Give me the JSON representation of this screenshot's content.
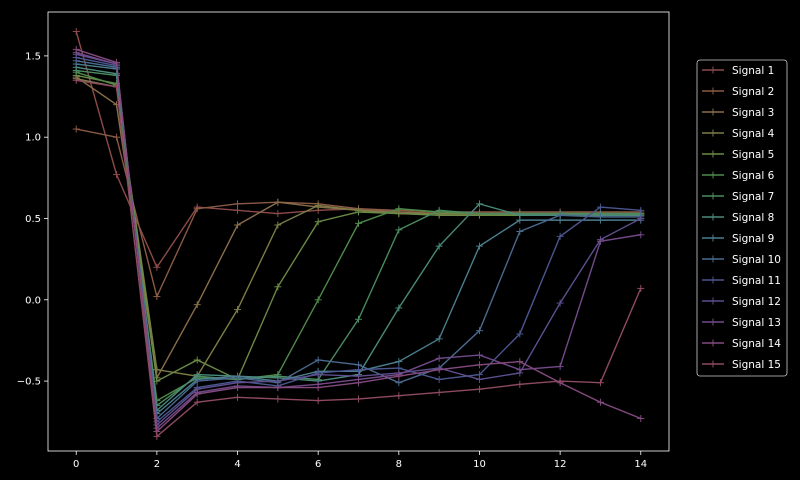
{
  "chart_data": {
    "type": "line",
    "title": "",
    "xlabel": "",
    "ylabel": "",
    "xlim": [
      -0.7,
      14.7
    ],
    "ylim": [
      -0.93,
      1.77
    ],
    "xticks": [
      0,
      2,
      4,
      6,
      8,
      10,
      12,
      14
    ],
    "xtick_labels": [
      "0",
      "2",
      "4",
      "6",
      "8",
      "10",
      "12",
      "14"
    ],
    "yticks": [
      -0.5,
      0.0,
      0.5,
      1.0,
      1.5
    ],
    "ytick_labels": [
      "−0.5",
      "0.0",
      "0.5",
      "1.0",
      "1.5"
    ],
    "grid": false,
    "legend_position": "right",
    "marker": "+",
    "x": [
      0,
      1,
      2,
      3,
      4,
      5,
      6,
      7,
      8,
      9,
      10,
      11,
      12,
      13,
      14
    ],
    "series": [
      {
        "name": "Signal 1",
        "color": "#8e4a4a",
        "values": [
          1.65,
          0.77,
          0.2,
          0.57,
          0.55,
          0.53,
          0.55,
          0.56,
          0.54,
          0.53,
          0.53,
          0.53,
          0.53,
          0.53,
          0.53
        ]
      },
      {
        "name": "Signal 2",
        "color": "#8a5a45",
        "values": [
          1.05,
          1.0,
          0.02,
          0.56,
          0.59,
          0.6,
          0.59,
          0.56,
          0.55,
          0.54,
          0.54,
          0.54,
          0.54,
          0.54,
          0.54
        ]
      },
      {
        "name": "Signal 3",
        "color": "#8a6e4a",
        "values": [
          1.37,
          1.2,
          -0.48,
          -0.03,
          0.46,
          0.6,
          0.57,
          0.55,
          0.54,
          0.53,
          0.53,
          0.53,
          0.53,
          0.53,
          0.53
        ]
      },
      {
        "name": "Signal 4",
        "color": "#7d7d46",
        "values": [
          1.36,
          1.31,
          -0.43,
          -0.47,
          -0.06,
          0.46,
          0.58,
          0.55,
          0.53,
          0.53,
          0.53,
          0.53,
          0.53,
          0.53,
          0.53
        ]
      },
      {
        "name": "Signal 5",
        "color": "#6a8a46",
        "values": [
          1.38,
          1.33,
          -0.5,
          -0.37,
          -0.49,
          0.08,
          0.48,
          0.54,
          0.53,
          0.52,
          0.52,
          0.52,
          0.52,
          0.52,
          0.52
        ]
      },
      {
        "name": "Signal 6",
        "color": "#4f8a4a",
        "values": [
          1.4,
          1.32,
          -0.62,
          -0.48,
          -0.49,
          -0.46,
          0.0,
          0.47,
          0.56,
          0.54,
          0.53,
          0.53,
          0.53,
          0.53,
          0.53
        ]
      },
      {
        "name": "Signal 7",
        "color": "#4a8a5e",
        "values": [
          1.41,
          1.38,
          -0.65,
          -0.47,
          -0.49,
          -0.47,
          -0.49,
          -0.12,
          0.43,
          0.55,
          0.53,
          0.53,
          0.53,
          0.53,
          0.53
        ]
      },
      {
        "name": "Signal 8",
        "color": "#4a8a7a",
        "values": [
          1.43,
          1.39,
          -0.68,
          -0.46,
          -0.47,
          -0.48,
          -0.5,
          -0.46,
          -0.05,
          0.33,
          0.59,
          0.52,
          0.52,
          0.52,
          0.52
        ]
      },
      {
        "name": "Signal 9",
        "color": "#4a7e8e",
        "values": [
          1.45,
          1.42,
          -0.7,
          -0.49,
          -0.47,
          -0.5,
          -0.44,
          -0.44,
          -0.38,
          -0.24,
          0.33,
          0.49,
          0.49,
          0.49,
          0.49
        ]
      },
      {
        "name": "Signal 10",
        "color": "#4a6a8e",
        "values": [
          1.47,
          1.43,
          -0.73,
          -0.5,
          -0.48,
          -0.51,
          -0.37,
          -0.4,
          -0.51,
          -0.42,
          -0.19,
          0.42,
          0.52,
          0.51,
          0.51
        ]
      },
      {
        "name": "Signal 11",
        "color": "#4a568e",
        "values": [
          1.49,
          1.44,
          -0.75,
          -0.54,
          -0.5,
          -0.53,
          -0.45,
          -0.43,
          -0.42,
          -0.49,
          -0.46,
          -0.21,
          0.39,
          0.57,
          0.55
        ]
      },
      {
        "name": "Signal 12",
        "color": "#5e4e8e",
        "values": [
          1.51,
          1.45,
          -0.77,
          -0.55,
          -0.51,
          -0.5,
          -0.46,
          -0.47,
          -0.45,
          -0.42,
          -0.49,
          -0.45,
          -0.02,
          0.37,
          0.5
        ]
      },
      {
        "name": "Signal 13",
        "color": "#724a8a",
        "values": [
          1.52,
          1.45,
          -0.79,
          -0.57,
          -0.53,
          -0.54,
          -0.52,
          -0.49,
          -0.46,
          -0.36,
          -0.34,
          -0.43,
          -0.41,
          0.36,
          0.4
        ]
      },
      {
        "name": "Signal 14",
        "color": "#844a7e",
        "values": [
          1.54,
          1.46,
          -0.81,
          -0.58,
          -0.54,
          -0.54,
          -0.54,
          -0.51,
          -0.47,
          -0.43,
          -0.4,
          -0.38,
          -0.51,
          -0.63,
          -0.73
        ]
      },
      {
        "name": "Signal 15",
        "color": "#8e4a62",
        "values": [
          1.35,
          1.31,
          -0.84,
          -0.63,
          -0.6,
          -0.61,
          -0.62,
          -0.61,
          -0.59,
          -0.57,
          -0.55,
          -0.52,
          -0.5,
          -0.51,
          0.07
        ]
      }
    ]
  }
}
